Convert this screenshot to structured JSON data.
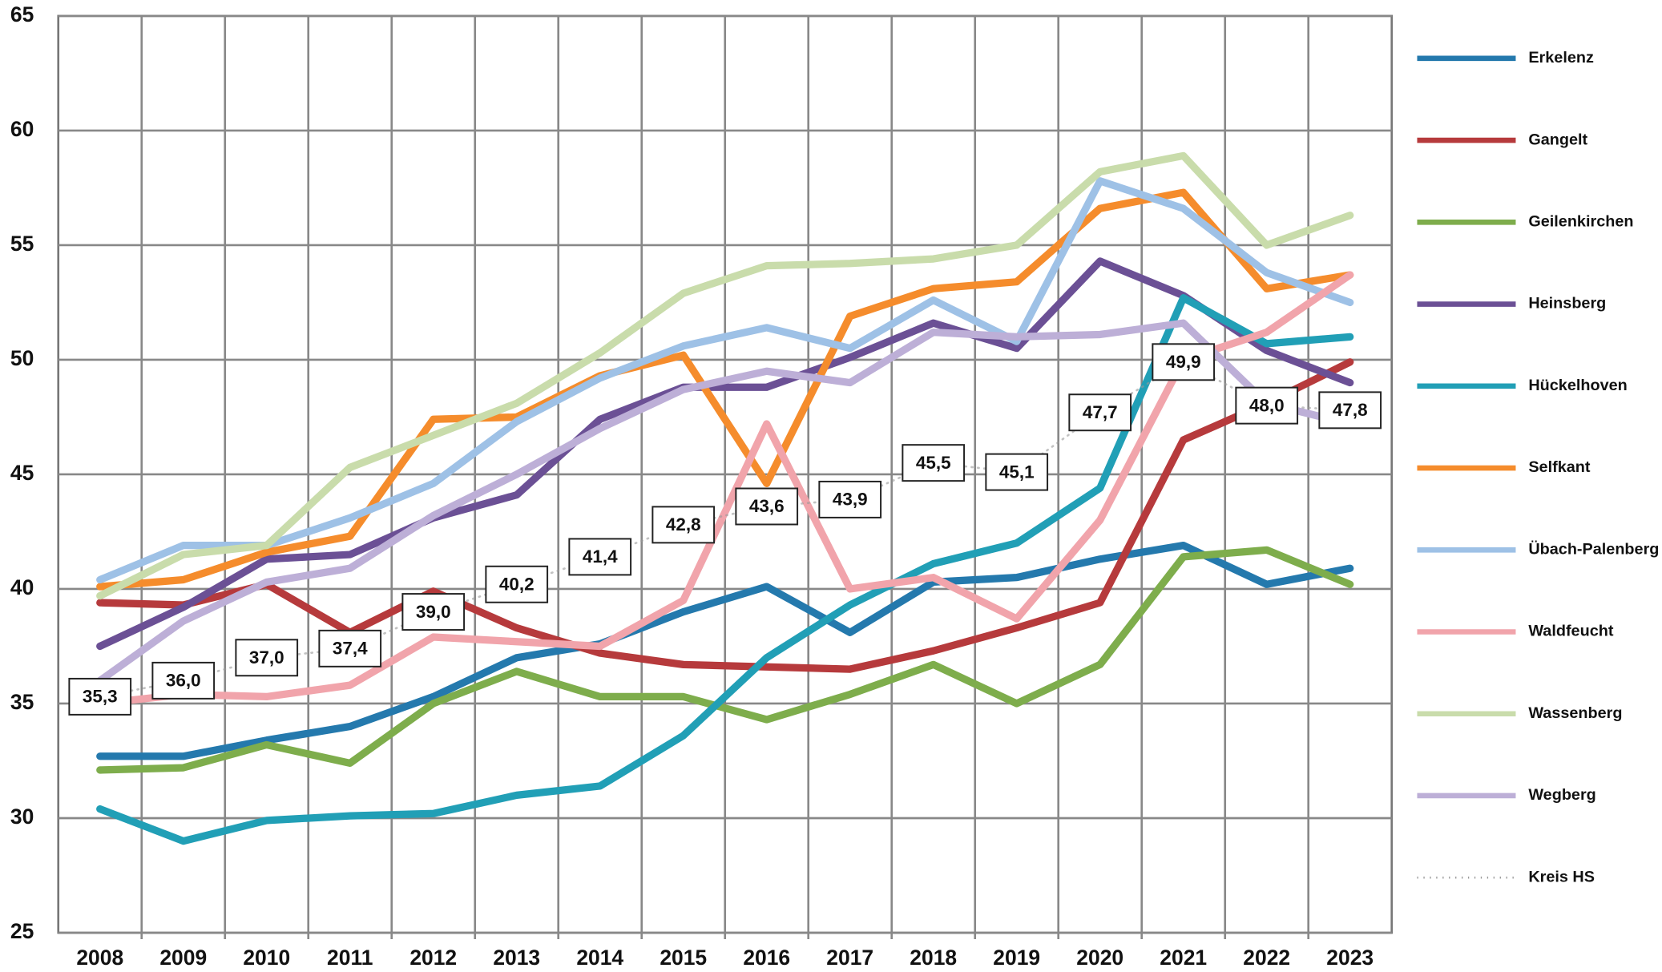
{
  "chart_data": {
    "type": "line",
    "categories": [
      "2008",
      "2009",
      "2010",
      "2011",
      "2012",
      "2013",
      "2014",
      "2015",
      "2016",
      "2017",
      "2018",
      "2019",
      "2020",
      "2021",
      "2022",
      "2023"
    ],
    "ylim": [
      25,
      65
    ],
    "yticks": [
      25,
      30,
      35,
      40,
      45,
      50,
      55,
      60,
      65
    ],
    "grid": true,
    "legend": "right",
    "series": [
      {
        "name": "Erkelenz",
        "color": "#2479ad",
        "values": [
          32.7,
          32.7,
          33.4,
          34.0,
          35.3,
          37.0,
          37.6,
          39.0,
          40.1,
          38.1,
          40.3,
          40.5,
          41.3,
          41.9,
          40.2,
          40.9
        ]
      },
      {
        "name": "Gangelt",
        "color": "#b63a3c",
        "values": [
          39.4,
          39.3,
          40.2,
          38.1,
          39.9,
          38.3,
          37.2,
          36.7,
          36.6,
          36.5,
          37.3,
          38.3,
          39.4,
          46.5,
          48.1,
          49.9
        ]
      },
      {
        "name": "Geilenkirchen",
        "color": "#7ead4c",
        "values": [
          32.1,
          32.2,
          33.2,
          32.4,
          35.0,
          36.4,
          35.3,
          35.3,
          34.3,
          35.4,
          36.7,
          35.0,
          36.7,
          41.4,
          41.7,
          40.2
        ]
      },
      {
        "name": "Heinsberg",
        "color": "#6b5095",
        "values": [
          37.5,
          39.2,
          41.3,
          41.5,
          43.1,
          44.1,
          47.4,
          48.8,
          48.8,
          50.1,
          51.6,
          50.5,
          54.3,
          52.8,
          50.4,
          49.0
        ]
      },
      {
        "name": "Hückelhoven",
        "color": "#219fb6",
        "values": [
          30.4,
          29.0,
          29.9,
          30.1,
          30.2,
          31.0,
          31.4,
          33.6,
          37.0,
          39.3,
          41.1,
          42.0,
          44.4,
          52.7,
          50.7,
          51.0
        ]
      },
      {
        "name": "Selfkant",
        "color": "#f58c2c",
        "values": [
          40.1,
          40.4,
          41.6,
          42.3,
          47.4,
          47.5,
          49.3,
          50.2,
          44.6,
          51.9,
          53.1,
          53.4,
          56.6,
          57.3,
          53.1,
          53.7
        ]
      },
      {
        "name": "Übach-Palenberg",
        "color": "#9ec1e6",
        "values": [
          40.4,
          41.9,
          41.9,
          43.1,
          44.6,
          47.3,
          49.2,
          50.6,
          51.4,
          50.5,
          52.6,
          50.8,
          57.8,
          56.6,
          53.8,
          52.5
        ]
      },
      {
        "name": "Waldfeucht",
        "color": "#f1a4ab",
        "values": [
          35.0,
          35.4,
          35.3,
          35.8,
          37.9,
          37.7,
          37.5,
          39.5,
          47.2,
          40.0,
          40.5,
          38.7,
          43.0,
          50.0,
          51.2,
          53.7
        ]
      },
      {
        "name": "Wassenberg",
        "color": "#c9dcab",
        "values": [
          39.7,
          41.5,
          41.9,
          45.3,
          46.7,
          48.1,
          50.3,
          52.9,
          54.1,
          54.2,
          54.4,
          55.0,
          58.2,
          58.9,
          55.0,
          56.3
        ]
      },
      {
        "name": "Wegberg",
        "color": "#bdafd7",
        "values": [
          36.0,
          38.6,
          40.3,
          40.9,
          43.2,
          45.0,
          47.0,
          48.7,
          49.5,
          49.0,
          51.2,
          51.0,
          51.1,
          51.6,
          48.1,
          47.2
        ]
      },
      {
        "name": "Kreis HS",
        "color": "#999999",
        "dotted": true,
        "values": [
          35.3,
          36.0,
          37.0,
          37.4,
          39.0,
          40.2,
          41.4,
          42.8,
          43.6,
          43.9,
          45.5,
          45.1,
          47.7,
          49.9,
          48.0,
          47.8
        ],
        "value_labels": [
          "35,3",
          "36,0",
          "37,0",
          "37,4",
          "39,0",
          "40,2",
          "41,4",
          "42,8",
          "43,6",
          "43,9",
          "45,5",
          "45,1",
          "47,7",
          "49,9",
          "48,0",
          "47,8"
        ]
      }
    ]
  }
}
